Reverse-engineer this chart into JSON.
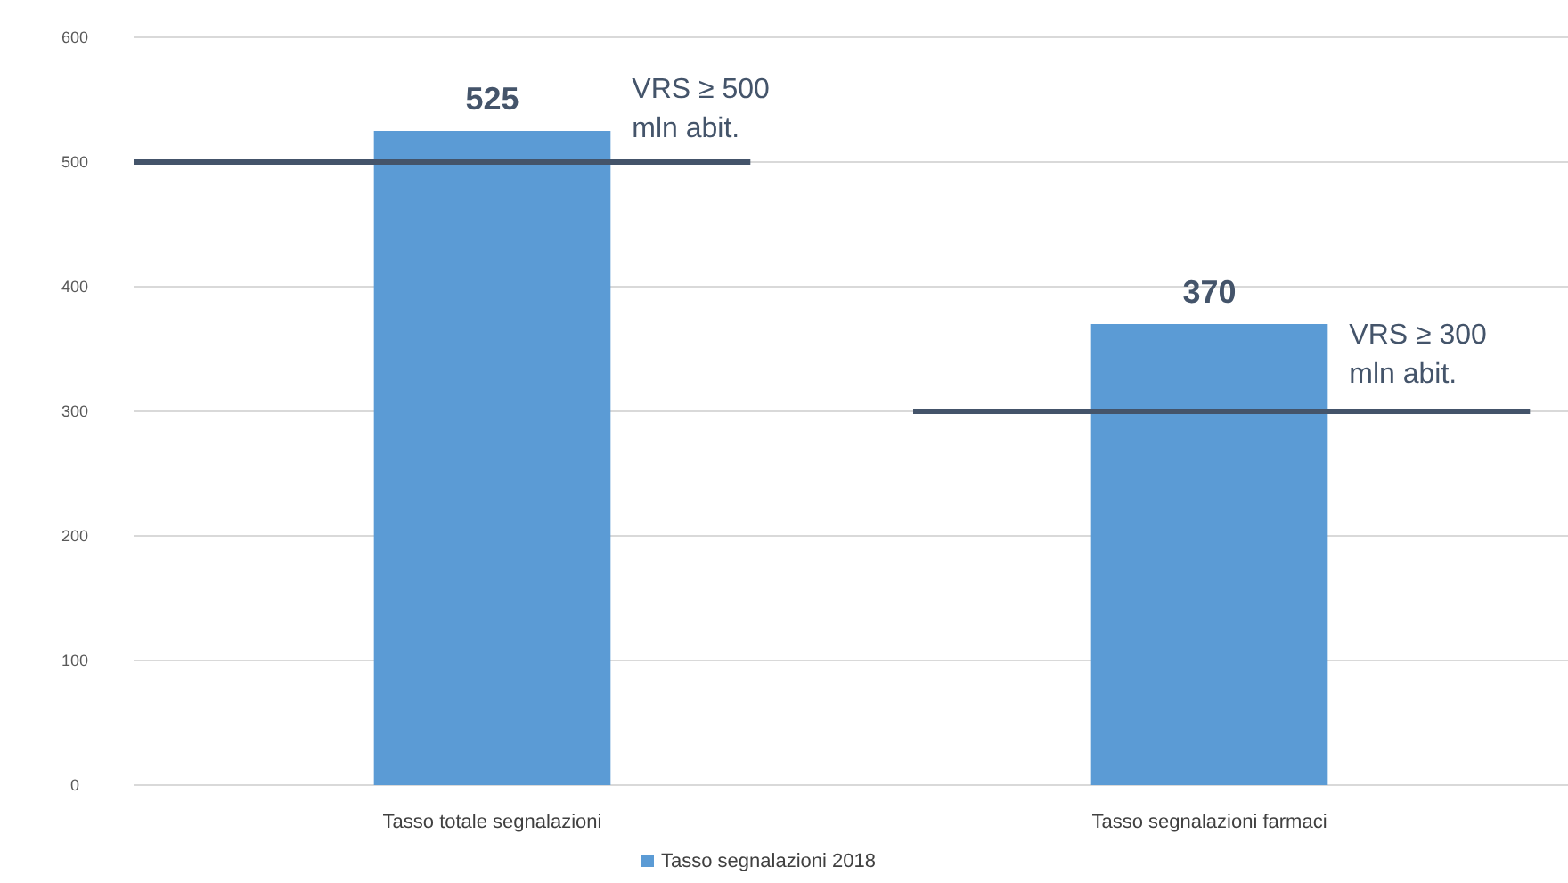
{
  "chart_data": {
    "type": "bar",
    "categories": [
      "Tasso totale segnalazioni",
      "Tasso segnalazioni farmaci"
    ],
    "series": [
      {
        "name": "Tasso segnalazioni 2018",
        "color": "#5b9bd5",
        "values": [
          525,
          370
        ]
      }
    ],
    "data_labels": true,
    "ylim": [
      0,
      600
    ],
    "yticks": [
      0,
      100,
      200,
      300,
      400,
      500,
      600
    ],
    "grid": "y",
    "legend": "bottom",
    "ref_lines": [
      {
        "axis": "y",
        "value": 500,
        "label": "VRS ≥ 500 mln abit.",
        "color": "#44546a"
      },
      {
        "axis": "y",
        "value": 300,
        "label": "VRS ≥ 300 mln abit.",
        "color": "#44546a"
      }
    ]
  }
}
